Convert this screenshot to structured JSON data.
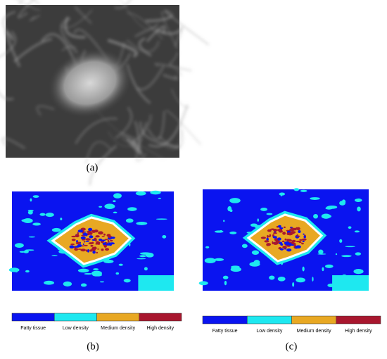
{
  "panels": [
    {
      "label": "(a)"
    },
    {
      "label": "(b)",
      "legend": [
        {
          "name": "Fatty tissue",
          "color": "#0a14f0"
        },
        {
          "name": "Low density",
          "color": "#1ee8f0"
        },
        {
          "name": "Medium density",
          "color": "#e8a823"
        },
        {
          "name": "High density",
          "color": "#a8172e"
        }
      ]
    },
    {
      "label": "(c)",
      "legend": [
        {
          "name": "Fatty tissue",
          "color": "#0a14f0"
        },
        {
          "name": "Low density",
          "color": "#1ee8f0"
        },
        {
          "name": "Medium density",
          "color": "#e8a823"
        },
        {
          "name": "High density",
          "color": "#a8172e"
        }
      ]
    }
  ]
}
